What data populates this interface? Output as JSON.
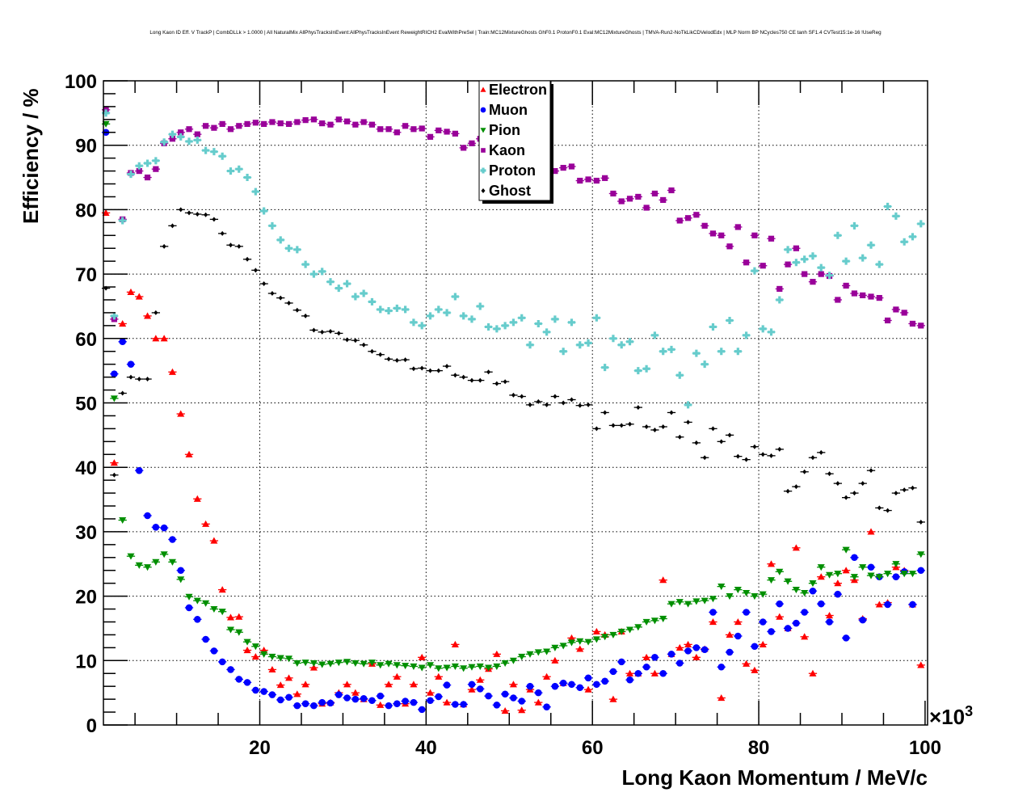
{
  "chart_data": {
    "type": "scatter",
    "title": "Long Kaon ID Eff. V TrackP | CombDLLk > 1.0000 | All NaturalMix AllPhysTracksInEvent:AllPhysTracksInEvent ReweightRICH2 EvalWithPreSel | Train:MC12MixtureGhosts GhF0.1 ProtonF0.1 Eval:MC12MixtureGhosts | TMVA-Run2-NoTkLikCDVelodEdx | MLP Norm BP NCycles750 CE tanh SF1.4 CVTest15:1e-16 !UseReg",
    "xlabel": "Long Kaon Momentum / MeV/c",
    "ylabel": "Efficiency / %",
    "x_multiplier_label": "×10",
    "x_multiplier_exp": "3",
    "xlim": [
      1.2,
      100.3
    ],
    "ylim": [
      0,
      100
    ],
    "x_ticks": [
      "20",
      "40",
      "60",
      "80",
      "100"
    ],
    "y_ticks": [
      "0",
      "10",
      "20",
      "30",
      "40",
      "50",
      "60",
      "70",
      "80",
      "90",
      "100"
    ],
    "grid": true,
    "legend_placement": "top-center",
    "x_start": 1.5,
    "x_step": 1.0,
    "series": [
      {
        "name": "Electron",
        "color": "#ff0000",
        "marker": "triangle-up",
        "values": [
          79.5,
          40.7,
          62.3,
          67.2,
          66.5,
          63.5,
          60,
          60,
          54.8,
          48.3,
          42,
          35.1,
          31.2,
          28.6,
          21,
          16.7,
          16.8,
          11.6,
          10.6,
          11.6,
          8.6,
          6.2,
          7.3,
          4.8,
          6.3,
          8.9,
          3.3,
          3.5,
          5,
          6.3,
          5,
          4,
          9.5,
          3.1,
          6.3,
          7.5,
          3.3,
          6.3,
          10.5,
          5,
          7.5,
          3.5,
          12.5,
          3.2,
          5.5,
          7,
          8.7,
          11,
          2.2,
          6.3,
          2.3,
          5.5,
          3.5,
          7.5,
          10,
          6.5,
          13.5,
          11.8,
          5.5,
          14.5,
          14,
          4,
          14.5,
          8,
          8,
          10.5,
          8,
          22.5,
          11,
          12,
          12.5,
          10.5,
          11.8,
          16,
          4.2,
          14,
          16,
          9.5,
          8.5,
          12.5,
          25,
          16.8,
          15,
          27.5,
          13.7,
          8,
          23,
          17,
          22,
          24,
          22.5,
          16.5,
          30,
          18.7,
          19,
          24.5,
          24,
          18.7,
          9.3
        ]
      },
      {
        "name": "Muon",
        "color": "#0000ff",
        "marker": "circle",
        "values": [
          92,
          54.5,
          59.5,
          56,
          39.5,
          32.5,
          30.7,
          30.6,
          28.8,
          24,
          18.2,
          16.4,
          13.3,
          11.5,
          9.8,
          8.6,
          7.1,
          6.6,
          5.4,
          5.2,
          4.7,
          3.9,
          4.3,
          3,
          3.3,
          3,
          3.5,
          3.4,
          4.7,
          4.2,
          4,
          4.1,
          3.8,
          4.5,
          3,
          3.3,
          3.7,
          3.5,
          2.4,
          3.8,
          4.4,
          6.2,
          3.2,
          3.2,
          6.3,
          5.6,
          4.5,
          3.1,
          4.8,
          4.2,
          3.7,
          6,
          5,
          2.8,
          6,
          6.5,
          6.3,
          5.8,
          7.3,
          6.3,
          6.8,
          8.3,
          9.8,
          7,
          8,
          9,
          10.5,
          8,
          11,
          9.6,
          11.5,
          12,
          11.7,
          17.5,
          9,
          11.3,
          13.8,
          17.5,
          12.2,
          16,
          14.5,
          18.8,
          15,
          15.8,
          17.5,
          20.8,
          18.8,
          16,
          20.3,
          13.5,
          26,
          16.3,
          24.5,
          23,
          18.7,
          23,
          23.8,
          18.7,
          24
        ]
      },
      {
        "name": "Pion",
        "color": "#008f00",
        "marker": "triangle-down",
        "values": [
          93.3,
          50.7,
          31.8,
          26.2,
          24.8,
          24.5,
          25.3,
          26.5,
          25.3,
          22.6,
          19.9,
          19.3,
          18.9,
          18,
          17.6,
          14.8,
          14.4,
          12.9,
          12.2,
          11,
          10.6,
          10.4,
          10.3,
          9.6,
          9.7,
          9.6,
          9.4,
          9.5,
          9.7,
          9.8,
          9.6,
          9.5,
          9.7,
          9.3,
          9.5,
          9.3,
          9.2,
          9.1,
          8.9,
          9.3,
          8.8,
          8.9,
          9.1,
          8.8,
          9,
          9.1,
          8.9,
          9.1,
          9.6,
          10,
          10.6,
          11,
          11.3,
          11.4,
          12,
          12.3,
          12.8,
          13,
          12.9,
          13.3,
          13.7,
          14,
          14.5,
          14.8,
          15.2,
          16,
          16.2,
          16.5,
          18.8,
          19.1,
          18.8,
          19.2,
          19.3,
          19.6,
          21.5,
          20,
          21,
          20.5,
          20,
          20.3,
          22.5,
          23.8,
          22.3,
          21,
          20.5,
          22,
          24.5,
          23.3,
          23.5,
          27.2,
          23,
          24.5,
          23.2,
          23,
          23.5,
          25,
          23.5,
          23.5,
          26.5
        ]
      },
      {
        "name": "Kaon",
        "color": "#990099",
        "marker": "square",
        "values": [
          95.5,
          63,
          78.5,
          85.7,
          86,
          85,
          86.3,
          90.3,
          91,
          92,
          92.5,
          91.7,
          93,
          92.7,
          93.3,
          92.5,
          93,
          93.3,
          93.5,
          93.3,
          93.6,
          93.4,
          93.3,
          93.6,
          93.9,
          94,
          93.4,
          93.2,
          94,
          93.7,
          93.2,
          93.6,
          93.2,
          92.5,
          92.5,
          92,
          93,
          92.5,
          92.6,
          91.3,
          92.3,
          92.1,
          91.8,
          89.6,
          90.3,
          91,
          90,
          90.3,
          91,
          89.5,
          88.5,
          89,
          88,
          87.5,
          86,
          86.5,
          86.7,
          84.5,
          84.7,
          84.5,
          84.9,
          82.5,
          81.3,
          81.7,
          82,
          80.3,
          82.5,
          81.5,
          83,
          78.3,
          78.7,
          79.2,
          77.5,
          76.3,
          76,
          74.3,
          77.3,
          71.8,
          76,
          71.3,
          75.5,
          67.7,
          71.5,
          74,
          70,
          68.8,
          70,
          69.7,
          66,
          68.2,
          67,
          66.7,
          66.5,
          66.3,
          62.8,
          64.5,
          64,
          62.3,
          62
        ]
      },
      {
        "name": "Proton",
        "color": "#66cccc",
        "marker": "cross",
        "values": [
          95,
          63.5,
          78.3,
          85.5,
          86.8,
          87.2,
          87.6,
          90.5,
          91.7,
          91.3,
          90.6,
          90.8,
          89.2,
          89,
          88.3,
          86,
          86.3,
          85,
          82.8,
          79.8,
          77.5,
          75.3,
          74,
          73.8,
          71.5,
          70,
          70.4,
          68.8,
          67.8,
          68.5,
          66.5,
          67,
          65.7,
          64.5,
          64.3,
          64.7,
          64.5,
          62.5,
          62,
          63.5,
          64.5,
          64,
          66.5,
          63.5,
          63,
          65,
          61.8,
          61.5,
          62,
          62.5,
          63.2,
          59,
          62.3,
          61,
          63,
          58,
          62.5,
          59,
          59.3,
          63.2,
          55.5,
          60,
          59,
          59.5,
          55,
          55.3,
          60.5,
          58,
          58.3,
          54.3,
          49.7,
          57.7,
          56,
          61.8,
          58,
          62.8,
          58,
          60.5,
          70.5,
          61.5,
          61,
          66,
          73.8,
          71.8,
          72.3,
          72.8,
          71,
          69.8,
          76,
          72,
          77.5,
          72.5,
          74.5,
          71.5,
          80.5,
          79,
          75,
          75.8,
          77.8
        ]
      },
      {
        "name": "Ghost",
        "color": "#000000",
        "marker": "diamond",
        "values": [
          67.8,
          38.8,
          51.5,
          54,
          53.7,
          53.7,
          64,
          74.3,
          77.5,
          80,
          79.5,
          79.3,
          79.2,
          78.5,
          76.3,
          74.5,
          74.3,
          72.3,
          70.6,
          68.5,
          67,
          66.3,
          65.5,
          64.4,
          63.5,
          61.3,
          61,
          61.1,
          60.8,
          59.8,
          59.7,
          59,
          58,
          57.5,
          56.8,
          56.6,
          56.7,
          55.3,
          55.4,
          55,
          55,
          55.7,
          54.3,
          54,
          53.5,
          53.5,
          54.8,
          53,
          53.3,
          51.2,
          51,
          49.7,
          50.2,
          49.7,
          51,
          50,
          50.5,
          49.6,
          49.7,
          46,
          48.5,
          46.5,
          46.5,
          46.7,
          49.3,
          46.3,
          45.8,
          46.3,
          48.5,
          44.7,
          47,
          43.8,
          41.5,
          46,
          44,
          45,
          41.7,
          41.2,
          43.2,
          42,
          41.8,
          42.8,
          36.3,
          37,
          39.3,
          41.5,
          42.3,
          39,
          37.5,
          35.3,
          36,
          37.5,
          39.5,
          33.7,
          33.3,
          36,
          36.5,
          36.8,
          31.5
        ]
      }
    ]
  }
}
